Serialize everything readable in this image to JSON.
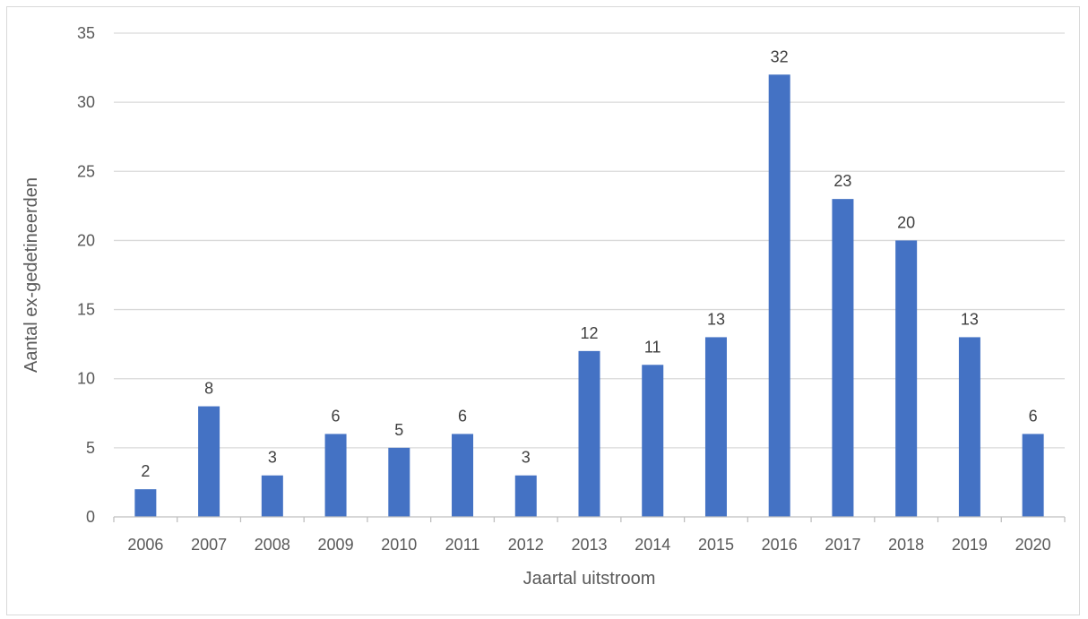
{
  "chart_data": {
    "type": "bar",
    "title": "",
    "xlabel": "Jaartal uitstroom",
    "ylabel": "Aantal ex-gedetineerden",
    "categories": [
      "2006",
      "2007",
      "2008",
      "2009",
      "2010",
      "2011",
      "2012",
      "2013",
      "2014",
      "2015",
      "2016",
      "2017",
      "2018",
      "2019",
      "2020"
    ],
    "values": [
      2,
      8,
      3,
      6,
      5,
      6,
      3,
      12,
      11,
      13,
      32,
      23,
      20,
      13,
      6
    ],
    "ylim": [
      0,
      35
    ],
    "yticks": [
      "0",
      "5",
      "10",
      "15",
      "20",
      "25",
      "30",
      "35"
    ],
    "grid": true,
    "legend": "none",
    "data_labels": true,
    "colors": {
      "bar": "#4472c4",
      "grid": "#d9d9d9",
      "axis": "#bfbfbf"
    }
  }
}
